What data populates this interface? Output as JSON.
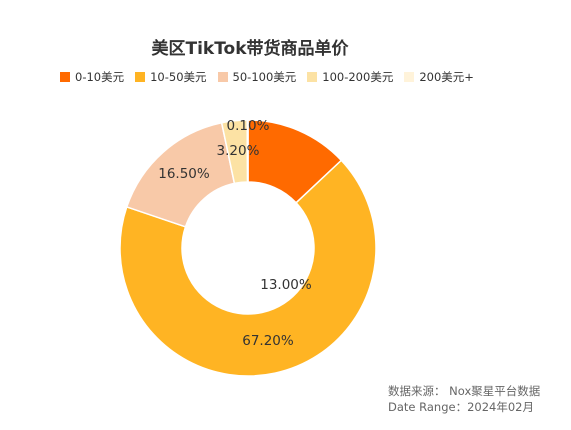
{
  "chart_data": {
    "type": "pie",
    "title": "美区TikTok带货商品单价",
    "legend_position": "top",
    "donut": true,
    "categories": [
      "0-10美元",
      "10-50美元",
      "50-100美元",
      "100-200美元",
      "200美元+"
    ],
    "values": [
      13.0,
      67.2,
      16.5,
      3.2,
      0.1
    ],
    "data_labels": [
      "13.00%",
      "67.20%",
      "16.50%",
      "3.20%",
      "0.10%"
    ],
    "colors": [
      "#FF6A00",
      "#FFB423",
      "#F8C9A8",
      "#FCE2A4",
      "#FFF3DA"
    ]
  },
  "source": {
    "line1": "数据来源： Nox聚星平台数据",
    "line2": "Date Range：2024年02月"
  }
}
